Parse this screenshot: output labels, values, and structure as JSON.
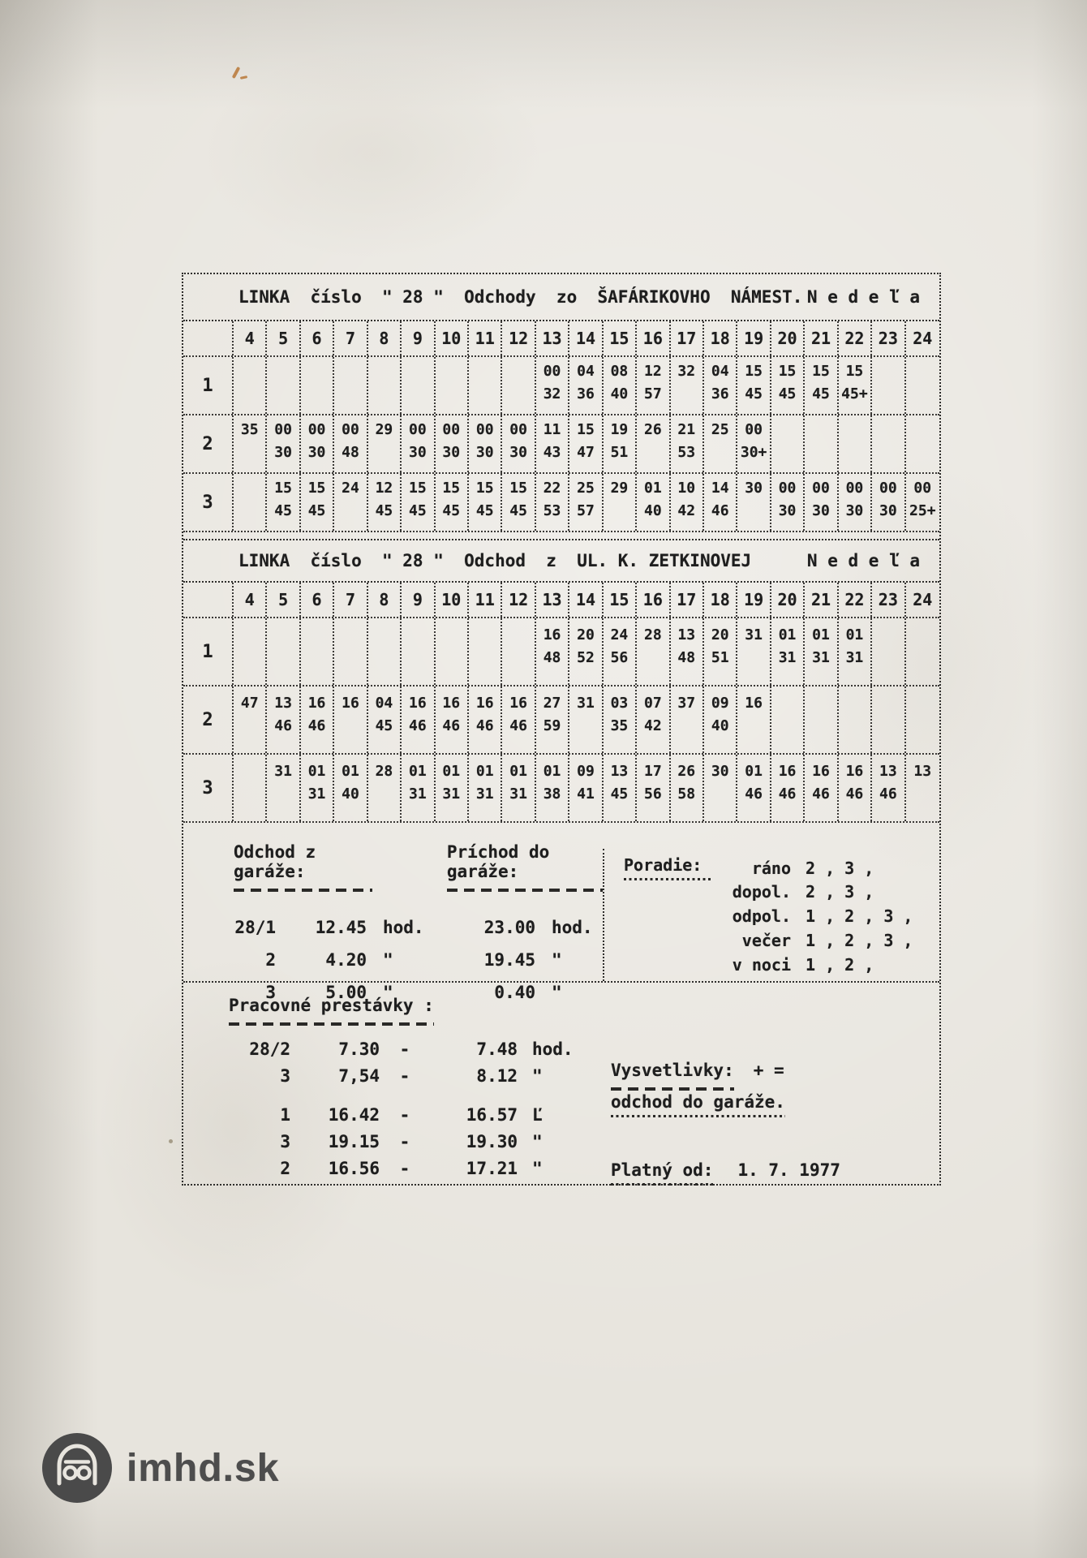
{
  "logo": {
    "text": "imhd.sk"
  },
  "hours": [
    "4",
    "5",
    "6",
    "7",
    "8",
    "9",
    "10",
    "11",
    "12",
    "13",
    "14",
    "15",
    "16",
    "17",
    "18",
    "19",
    "20",
    "21",
    "22",
    "23",
    "24"
  ],
  "tables": [
    {
      "title": "LINKA  číslo  \" 28 \"  Odchody  zo  ŠAFÁRIKOVHO  NÁMEST.",
      "day": "N e d e ľ a",
      "rows": [
        {
          "label": "1",
          "cells": [
            [
              "",
              ""
            ],
            [
              "",
              ""
            ],
            [
              "",
              ""
            ],
            [
              "",
              ""
            ],
            [
              "",
              ""
            ],
            [
              "",
              ""
            ],
            [
              "",
              ""
            ],
            [
              "",
              ""
            ],
            [
              "",
              ""
            ],
            [
              "00",
              "32"
            ],
            [
              "04",
              "36"
            ],
            [
              "08",
              "40"
            ],
            [
              "12",
              "57"
            ],
            [
              "32",
              ""
            ],
            [
              "04",
              "36"
            ],
            [
              "15",
              "45"
            ],
            [
              "15",
              "45"
            ],
            [
              "15",
              "45"
            ],
            [
              "15",
              "45+"
            ],
            [
              "",
              ""
            ],
            [
              "",
              ""
            ]
          ]
        },
        {
          "label": "2",
          "cells": [
            [
              "35",
              ""
            ],
            [
              "00",
              "30"
            ],
            [
              "00",
              "30"
            ],
            [
              "00",
              "48"
            ],
            [
              "29",
              ""
            ],
            [
              "00",
              "30"
            ],
            [
              "00",
              "30"
            ],
            [
              "00",
              "30"
            ],
            [
              "00",
              "30"
            ],
            [
              "11",
              "43"
            ],
            [
              "15",
              "47"
            ],
            [
              "19",
              "51"
            ],
            [
              "26",
              ""
            ],
            [
              "21",
              "53"
            ],
            [
              "25",
              ""
            ],
            [
              "00",
              "30+"
            ],
            [
              "",
              ""
            ],
            [
              "",
              ""
            ],
            [
              "",
              ""
            ],
            [
              "",
              ""
            ],
            [
              "",
              ""
            ]
          ]
        },
        {
          "label": "3",
          "cells": [
            [
              "",
              ""
            ],
            [
              "15",
              "45"
            ],
            [
              "15",
              "45"
            ],
            [
              "24",
              ""
            ],
            [
              "12",
              "45"
            ],
            [
              "15",
              "45"
            ],
            [
              "15",
              "45"
            ],
            [
              "15",
              "45"
            ],
            [
              "15",
              "45"
            ],
            [
              "22",
              "53"
            ],
            [
              "25",
              "57"
            ],
            [
              "29",
              ""
            ],
            [
              "01",
              "40"
            ],
            [
              "10",
              "42"
            ],
            [
              "14",
              "46"
            ],
            [
              "30",
              ""
            ],
            [
              "00",
              "30"
            ],
            [
              "00",
              "30"
            ],
            [
              "00",
              "30"
            ],
            [
              "00",
              "30"
            ],
            [
              "00",
              "25+"
            ]
          ]
        }
      ]
    },
    {
      "title": "LINKA  číslo  \" 28 \"  Odchod  z  UL. K. ZETKINOVEJ",
      "day": "N e d e ľ a",
      "rows": [
        {
          "label": "1",
          "cells": [
            [
              "",
              ""
            ],
            [
              "",
              ""
            ],
            [
              "",
              ""
            ],
            [
              "",
              ""
            ],
            [
              "",
              ""
            ],
            [
              "",
              ""
            ],
            [
              "",
              ""
            ],
            [
              "",
              ""
            ],
            [
              "",
              ""
            ],
            [
              "16",
              "48"
            ],
            [
              "20",
              "52"
            ],
            [
              "24",
              "56"
            ],
            [
              "28",
              ""
            ],
            [
              "13",
              "48"
            ],
            [
              "20",
              "51"
            ],
            [
              "31",
              ""
            ],
            [
              "01",
              "31"
            ],
            [
              "01",
              "31"
            ],
            [
              "01",
              "31"
            ],
            [
              "",
              ""
            ],
            [
              "",
              ""
            ]
          ]
        },
        {
          "label": "2",
          "cells": [
            [
              "47",
              ""
            ],
            [
              "13",
              "46"
            ],
            [
              "16",
              "46"
            ],
            [
              "16",
              ""
            ],
            [
              "04",
              "45"
            ],
            [
              "16",
              "46"
            ],
            [
              "16",
              "46"
            ],
            [
              "16",
              "46"
            ],
            [
              "16",
              "46"
            ],
            [
              "27",
              "59"
            ],
            [
              "31",
              ""
            ],
            [
              "03",
              "35"
            ],
            [
              "07",
              "42"
            ],
            [
              "37",
              ""
            ],
            [
              "09",
              "40"
            ],
            [
              "16",
              ""
            ],
            [
              "",
              ""
            ],
            [
              "",
              ""
            ],
            [
              "",
              ""
            ],
            [
              "",
              ""
            ],
            [
              "",
              ""
            ]
          ]
        },
        {
          "label": "3",
          "cells": [
            [
              "",
              ""
            ],
            [
              "31",
              ""
            ],
            [
              "01",
              "31"
            ],
            [
              "01",
              "40"
            ],
            [
              "28",
              ""
            ],
            [
              "01",
              "31"
            ],
            [
              "01",
              "31"
            ],
            [
              "01",
              "31"
            ],
            [
              "01",
              "31"
            ],
            [
              "01",
              "38"
            ],
            [
              "09",
              "41"
            ],
            [
              "13",
              "45"
            ],
            [
              "17",
              "56"
            ],
            [
              "26",
              "58"
            ],
            [
              "30",
              ""
            ],
            [
              "01",
              "46"
            ],
            [
              "16",
              "46"
            ],
            [
              "16",
              "46"
            ],
            [
              "16",
              "46"
            ],
            [
              "13",
              "46"
            ],
            [
              "13",
              ""
            ]
          ]
        }
      ]
    }
  ],
  "garage": {
    "left_heading": "Odchod z garáže:",
    "right_heading": "Príchod do garáže:",
    "rows": [
      {
        "unit": "28/1",
        "out_time": "12.45",
        "out_suffix": "hod.",
        "in_time": "23.00",
        "in_suffix": "hod."
      },
      {
        "unit": "2",
        "out_time": "4.20",
        "out_suffix": "\"",
        "in_time": "19.45",
        "in_suffix": "\""
      },
      {
        "unit": "3",
        "out_time": "5.00",
        "out_suffix": "\"",
        "in_time": "0.40",
        "in_suffix": "\""
      }
    ]
  },
  "poradie": {
    "label": "Poradie:",
    "rows": [
      {
        "period": "ráno",
        "order": "2 , 3 ,"
      },
      {
        "period": "dopol.",
        "order": "2 , 3 ,"
      },
      {
        "period": "odpol.",
        "order": "1 , 2 , 3 ,"
      },
      {
        "period": "večer",
        "order": "1 , 2 , 3 ,"
      },
      {
        "period": "v noci",
        "order": "1 , 2 ,"
      }
    ]
  },
  "breaks": {
    "heading": "Pracovné prestávky :",
    "dash": "-",
    "rows": [
      {
        "unit": "28/2",
        "from": "7.30",
        "to": "7.48",
        "suffix": "hod."
      },
      {
        "unit": "3",
        "from": "7,54",
        "to": "8.12",
        "suffix": "\""
      },
      {
        "unit": "1",
        "from": "16.42",
        "to": "16.57",
        "suffix": "Ľ"
      },
      {
        "unit": "3",
        "from": "19.15",
        "to": "19.30",
        "suffix": "\""
      },
      {
        "unit": "2",
        "from": "16.56",
        "to": "17.21",
        "suffix": "\""
      }
    ]
  },
  "legend": {
    "label": "Vysvetlivky:",
    "symbol": "+ =",
    "text": "odchod do garáže."
  },
  "valid": {
    "label": "Platný od:",
    "value": "1. 7. 1977"
  }
}
